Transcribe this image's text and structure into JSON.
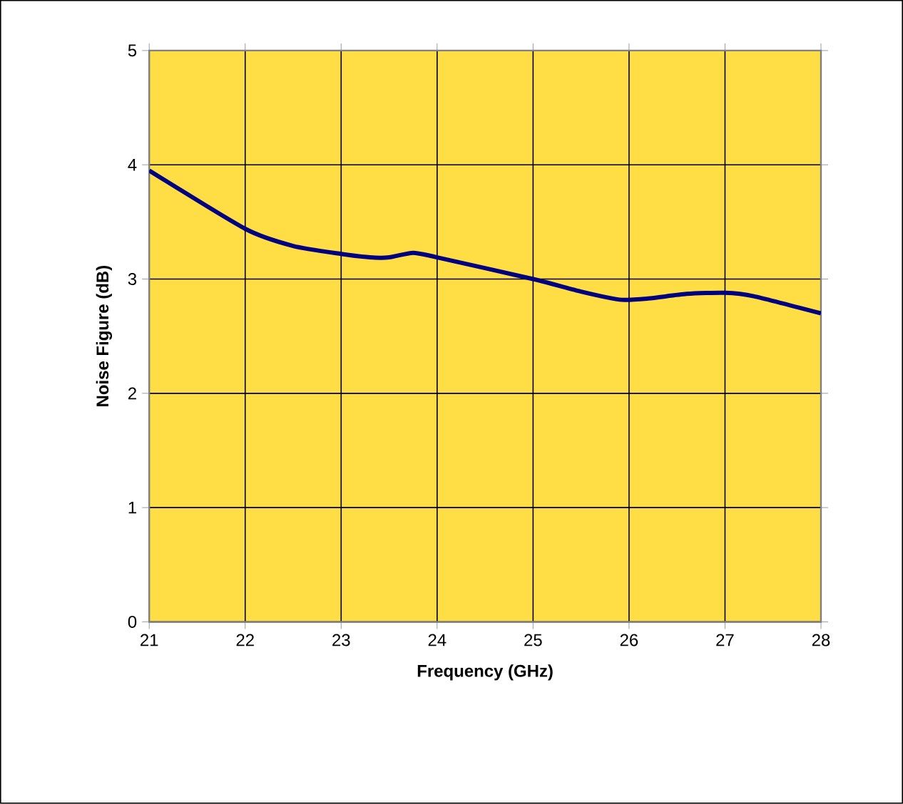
{
  "chart_data": {
    "type": "line",
    "xlabel": "Frequency (GHz)",
    "ylabel": "Noise Figure (dB)",
    "x": [
      21,
      22,
      22.5,
      23,
      23.3,
      23.5,
      23.75,
      24,
      25,
      25.5,
      25.9,
      26.2,
      26.6,
      27,
      27.3,
      28
    ],
    "series": [
      {
        "color": "#000080",
        "values": [
          3.95,
          3.44,
          3.29,
          3.22,
          3.19,
          3.19,
          3.23,
          3.19,
          3.0,
          2.89,
          2.82,
          2.83,
          2.87,
          2.88,
          2.85,
          2.7
        ]
      }
    ],
    "xlim": [
      21,
      28
    ],
    "ylim": [
      0,
      5
    ],
    "xticks": [
      21,
      22,
      23,
      24,
      25,
      26,
      27,
      28
    ],
    "yticks": [
      0,
      1,
      2,
      3,
      4,
      5
    ],
    "grid": true,
    "marker": "none",
    "line_style": "solid"
  }
}
